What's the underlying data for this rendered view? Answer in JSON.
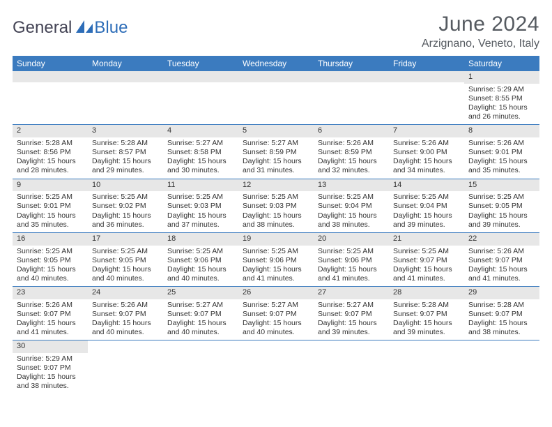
{
  "logo": {
    "part1": "General",
    "part2": "Blue"
  },
  "title": "June 2024",
  "location": "Arzignano, Veneto, Italy",
  "colors": {
    "header_bg": "#3b7bbf",
    "header_fg": "#ffffff",
    "daynum_bg": "#e7e7e7",
    "rule": "#3b7bbf",
    "title_color": "#555a60",
    "logo_blue": "#2d6db8"
  },
  "day_headers": [
    "Sunday",
    "Monday",
    "Tuesday",
    "Wednesday",
    "Thursday",
    "Friday",
    "Saturday"
  ],
  "weeks": [
    [
      {
        "n": "",
        "sunrise": "",
        "sunset": "",
        "daylight1": "",
        "daylight2": ""
      },
      {
        "n": "",
        "sunrise": "",
        "sunset": "",
        "daylight1": "",
        "daylight2": ""
      },
      {
        "n": "",
        "sunrise": "",
        "sunset": "",
        "daylight1": "",
        "daylight2": ""
      },
      {
        "n": "",
        "sunrise": "",
        "sunset": "",
        "daylight1": "",
        "daylight2": ""
      },
      {
        "n": "",
        "sunrise": "",
        "sunset": "",
        "daylight1": "",
        "daylight2": ""
      },
      {
        "n": "",
        "sunrise": "",
        "sunset": "",
        "daylight1": "",
        "daylight2": ""
      },
      {
        "n": "1",
        "sunrise": "Sunrise: 5:29 AM",
        "sunset": "Sunset: 8:55 PM",
        "daylight1": "Daylight: 15 hours",
        "daylight2": "and 26 minutes."
      }
    ],
    [
      {
        "n": "2",
        "sunrise": "Sunrise: 5:28 AM",
        "sunset": "Sunset: 8:56 PM",
        "daylight1": "Daylight: 15 hours",
        "daylight2": "and 28 minutes."
      },
      {
        "n": "3",
        "sunrise": "Sunrise: 5:28 AM",
        "sunset": "Sunset: 8:57 PM",
        "daylight1": "Daylight: 15 hours",
        "daylight2": "and 29 minutes."
      },
      {
        "n": "4",
        "sunrise": "Sunrise: 5:27 AM",
        "sunset": "Sunset: 8:58 PM",
        "daylight1": "Daylight: 15 hours",
        "daylight2": "and 30 minutes."
      },
      {
        "n": "5",
        "sunrise": "Sunrise: 5:27 AM",
        "sunset": "Sunset: 8:59 PM",
        "daylight1": "Daylight: 15 hours",
        "daylight2": "and 31 minutes."
      },
      {
        "n": "6",
        "sunrise": "Sunrise: 5:26 AM",
        "sunset": "Sunset: 8:59 PM",
        "daylight1": "Daylight: 15 hours",
        "daylight2": "and 32 minutes."
      },
      {
        "n": "7",
        "sunrise": "Sunrise: 5:26 AM",
        "sunset": "Sunset: 9:00 PM",
        "daylight1": "Daylight: 15 hours",
        "daylight2": "and 34 minutes."
      },
      {
        "n": "8",
        "sunrise": "Sunrise: 5:26 AM",
        "sunset": "Sunset: 9:01 PM",
        "daylight1": "Daylight: 15 hours",
        "daylight2": "and 35 minutes."
      }
    ],
    [
      {
        "n": "9",
        "sunrise": "Sunrise: 5:25 AM",
        "sunset": "Sunset: 9:01 PM",
        "daylight1": "Daylight: 15 hours",
        "daylight2": "and 35 minutes."
      },
      {
        "n": "10",
        "sunrise": "Sunrise: 5:25 AM",
        "sunset": "Sunset: 9:02 PM",
        "daylight1": "Daylight: 15 hours",
        "daylight2": "and 36 minutes."
      },
      {
        "n": "11",
        "sunrise": "Sunrise: 5:25 AM",
        "sunset": "Sunset: 9:03 PM",
        "daylight1": "Daylight: 15 hours",
        "daylight2": "and 37 minutes."
      },
      {
        "n": "12",
        "sunrise": "Sunrise: 5:25 AM",
        "sunset": "Sunset: 9:03 PM",
        "daylight1": "Daylight: 15 hours",
        "daylight2": "and 38 minutes."
      },
      {
        "n": "13",
        "sunrise": "Sunrise: 5:25 AM",
        "sunset": "Sunset: 9:04 PM",
        "daylight1": "Daylight: 15 hours",
        "daylight2": "and 38 minutes."
      },
      {
        "n": "14",
        "sunrise": "Sunrise: 5:25 AM",
        "sunset": "Sunset: 9:04 PM",
        "daylight1": "Daylight: 15 hours",
        "daylight2": "and 39 minutes."
      },
      {
        "n": "15",
        "sunrise": "Sunrise: 5:25 AM",
        "sunset": "Sunset: 9:05 PM",
        "daylight1": "Daylight: 15 hours",
        "daylight2": "and 39 minutes."
      }
    ],
    [
      {
        "n": "16",
        "sunrise": "Sunrise: 5:25 AM",
        "sunset": "Sunset: 9:05 PM",
        "daylight1": "Daylight: 15 hours",
        "daylight2": "and 40 minutes."
      },
      {
        "n": "17",
        "sunrise": "Sunrise: 5:25 AM",
        "sunset": "Sunset: 9:05 PM",
        "daylight1": "Daylight: 15 hours",
        "daylight2": "and 40 minutes."
      },
      {
        "n": "18",
        "sunrise": "Sunrise: 5:25 AM",
        "sunset": "Sunset: 9:06 PM",
        "daylight1": "Daylight: 15 hours",
        "daylight2": "and 40 minutes."
      },
      {
        "n": "19",
        "sunrise": "Sunrise: 5:25 AM",
        "sunset": "Sunset: 9:06 PM",
        "daylight1": "Daylight: 15 hours",
        "daylight2": "and 41 minutes."
      },
      {
        "n": "20",
        "sunrise": "Sunrise: 5:25 AM",
        "sunset": "Sunset: 9:06 PM",
        "daylight1": "Daylight: 15 hours",
        "daylight2": "and 41 minutes."
      },
      {
        "n": "21",
        "sunrise": "Sunrise: 5:25 AM",
        "sunset": "Sunset: 9:07 PM",
        "daylight1": "Daylight: 15 hours",
        "daylight2": "and 41 minutes."
      },
      {
        "n": "22",
        "sunrise": "Sunrise: 5:26 AM",
        "sunset": "Sunset: 9:07 PM",
        "daylight1": "Daylight: 15 hours",
        "daylight2": "and 41 minutes."
      }
    ],
    [
      {
        "n": "23",
        "sunrise": "Sunrise: 5:26 AM",
        "sunset": "Sunset: 9:07 PM",
        "daylight1": "Daylight: 15 hours",
        "daylight2": "and 41 minutes."
      },
      {
        "n": "24",
        "sunrise": "Sunrise: 5:26 AM",
        "sunset": "Sunset: 9:07 PM",
        "daylight1": "Daylight: 15 hours",
        "daylight2": "and 40 minutes."
      },
      {
        "n": "25",
        "sunrise": "Sunrise: 5:27 AM",
        "sunset": "Sunset: 9:07 PM",
        "daylight1": "Daylight: 15 hours",
        "daylight2": "and 40 minutes."
      },
      {
        "n": "26",
        "sunrise": "Sunrise: 5:27 AM",
        "sunset": "Sunset: 9:07 PM",
        "daylight1": "Daylight: 15 hours",
        "daylight2": "and 40 minutes."
      },
      {
        "n": "27",
        "sunrise": "Sunrise: 5:27 AM",
        "sunset": "Sunset: 9:07 PM",
        "daylight1": "Daylight: 15 hours",
        "daylight2": "and 39 minutes."
      },
      {
        "n": "28",
        "sunrise": "Sunrise: 5:28 AM",
        "sunset": "Sunset: 9:07 PM",
        "daylight1": "Daylight: 15 hours",
        "daylight2": "and 39 minutes."
      },
      {
        "n": "29",
        "sunrise": "Sunrise: 5:28 AM",
        "sunset": "Sunset: 9:07 PM",
        "daylight1": "Daylight: 15 hours",
        "daylight2": "and 38 minutes."
      }
    ],
    [
      {
        "n": "30",
        "sunrise": "Sunrise: 5:29 AM",
        "sunset": "Sunset: 9:07 PM",
        "daylight1": "Daylight: 15 hours",
        "daylight2": "and 38 minutes."
      },
      {
        "n": "",
        "sunrise": "",
        "sunset": "",
        "daylight1": "",
        "daylight2": ""
      },
      {
        "n": "",
        "sunrise": "",
        "sunset": "",
        "daylight1": "",
        "daylight2": ""
      },
      {
        "n": "",
        "sunrise": "",
        "sunset": "",
        "daylight1": "",
        "daylight2": ""
      },
      {
        "n": "",
        "sunrise": "",
        "sunset": "",
        "daylight1": "",
        "daylight2": ""
      },
      {
        "n": "",
        "sunrise": "",
        "sunset": "",
        "daylight1": "",
        "daylight2": ""
      },
      {
        "n": "",
        "sunrise": "",
        "sunset": "",
        "daylight1": "",
        "daylight2": ""
      }
    ]
  ]
}
